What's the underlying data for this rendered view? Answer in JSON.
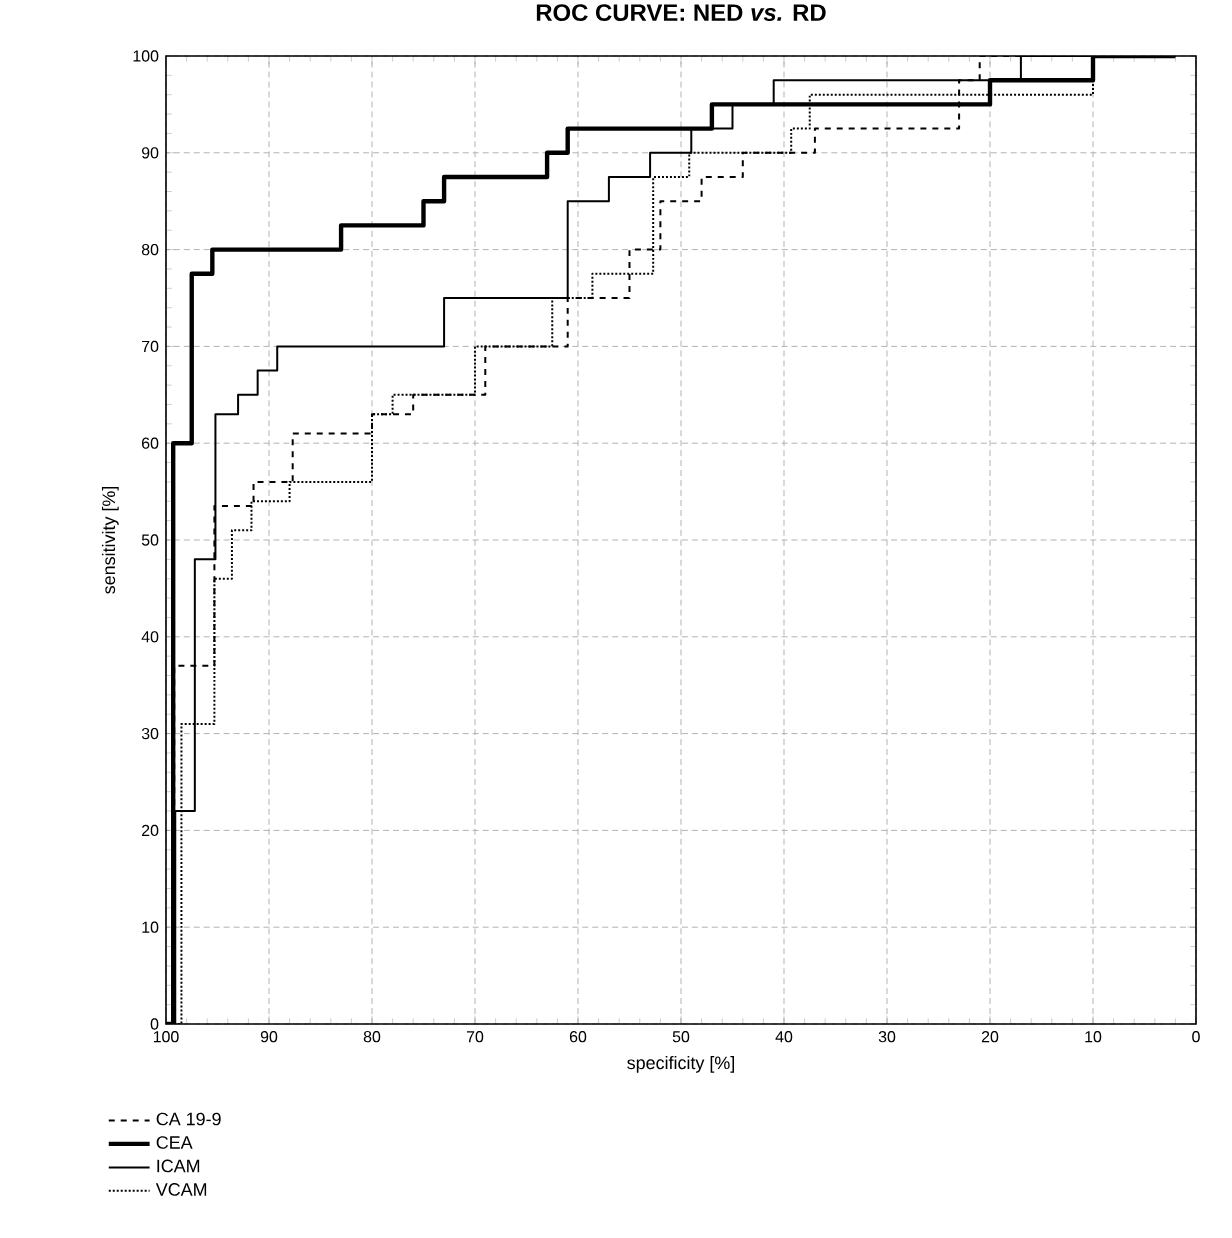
{
  "chart_data": {
    "type": "line",
    "title": "ROC CURVE: NED *vs.* RD",
    "xlabel": "specificity [%]",
    "ylabel": "sensitivity [%]",
    "xlim": [
      100,
      0
    ],
    "ylim": [
      0,
      100
    ],
    "xticks": [
      100,
      90,
      80,
      70,
      60,
      50,
      40,
      30,
      20,
      10,
      0
    ],
    "yticks": [
      0,
      10,
      20,
      30,
      40,
      50,
      60,
      70,
      80,
      90,
      100
    ],
    "grid": true,
    "legend": "bottom left",
    "marker": "none",
    "series": [
      {
        "name": "CA 19-9",
        "color": "#000000",
        "line_style": "dashed",
        "x": [
          100,
          99.2,
          99.2,
          95.3,
          95.3,
          91.5,
          91.5,
          87.7,
          87.7,
          80,
          80,
          76,
          76,
          69,
          69,
          61,
          61,
          55,
          55,
          52,
          52,
          48,
          48,
          44,
          44,
          37,
          37,
          23,
          23,
          21,
          21,
          2
        ],
        "values": [
          0,
          0,
          37,
          37,
          53.5,
          53.5,
          56,
          56,
          61,
          61,
          63,
          63,
          65,
          65,
          70,
          70,
          75,
          75,
          80,
          80,
          85,
          85,
          87.5,
          87.5,
          90,
          90,
          92.5,
          92.5,
          97.5,
          97.5,
          100,
          100
        ]
      },
      {
        "name": "CEA",
        "color": "#000000",
        "line_style": "solid",
        "x": [
          100,
          99.3,
          99.3,
          97.5,
          97.5,
          95.5,
          95.5,
          83,
          83,
          75,
          75,
          73,
          73,
          63,
          63,
          61,
          61,
          47,
          47,
          20,
          20,
          10,
          10,
          2
        ],
        "values": [
          0,
          0,
          60,
          60,
          77.5,
          77.5,
          80,
          80,
          82.5,
          82.5,
          85,
          85,
          87.5,
          87.5,
          90,
          90,
          92.5,
          92.5,
          95,
          95,
          97.5,
          97.5,
          100,
          100
        ]
      },
      {
        "name": "ICAM",
        "color": "#000000",
        "line_style": "solid",
        "x": [
          100,
          99.1,
          99.1,
          97.2,
          97.2,
          95.2,
          95.2,
          93,
          93,
          91.1,
          91.1,
          89.2,
          89.2,
          73,
          73,
          61,
          61,
          57,
          57,
          53,
          53,
          49,
          49,
          45,
          45,
          41,
          41,
          17,
          17,
          2
        ],
        "values": [
          0,
          0,
          22,
          22,
          48,
          48,
          63,
          63,
          65,
          65,
          67.5,
          67.5,
          70,
          70,
          75,
          75,
          85,
          85,
          87.5,
          87.5,
          90,
          90,
          92.5,
          92.5,
          95,
          95,
          97.5,
          97.5,
          100,
          100
        ]
      },
      {
        "name": "VCAM",
        "color": "#000000",
        "line_style": "dotted",
        "x": [
          100,
          98.5,
          98.5,
          95.3,
          95.3,
          93.6,
          93.6,
          91.7,
          91.7,
          88,
          88,
          80,
          80,
          78,
          78,
          70,
          70,
          62.5,
          62.5,
          58.6,
          58.6,
          52.7,
          52.7,
          49.2,
          49.2,
          39.3,
          39.3,
          37.5,
          37.5,
          10,
          10,
          2
        ],
        "values": [
          0,
          0,
          31,
          31,
          46,
          46,
          51,
          51,
          54,
          54,
          56,
          56,
          63,
          63,
          65,
          65,
          70,
          70,
          75,
          75,
          77.5,
          77.5,
          87.5,
          87.5,
          90,
          90,
          92.5,
          92.5,
          96,
          96,
          100,
          100
        ]
      }
    ]
  }
}
